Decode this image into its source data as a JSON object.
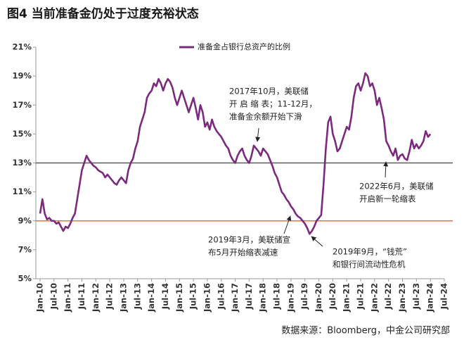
{
  "chart_data": {
    "type": "line",
    "title": "图4  当前准备金仍处于过度充裕状态",
    "source": "数据来源：Bloomberg，中金公司研究部",
    "x": [
      "2010-01",
      "2010-02",
      "2010-03",
      "2010-04",
      "2010-05",
      "2010-06",
      "2010-07",
      "2010-08",
      "2010-09",
      "2010-10",
      "2010-11",
      "2010-12",
      "2011-01",
      "2011-02",
      "2011-03",
      "2011-04",
      "2011-05",
      "2011-06",
      "2011-07",
      "2011-08",
      "2011-09",
      "2011-10",
      "2011-11",
      "2011-12",
      "2012-01",
      "2012-02",
      "2012-03",
      "2012-04",
      "2012-05",
      "2012-06",
      "2012-07",
      "2012-08",
      "2012-09",
      "2012-10",
      "2012-11",
      "2012-12",
      "2013-01",
      "2013-02",
      "2013-03",
      "2013-04",
      "2013-05",
      "2013-06",
      "2013-07",
      "2013-08",
      "2013-09",
      "2013-10",
      "2013-11",
      "2013-12",
      "2014-01",
      "2014-02",
      "2014-03",
      "2014-04",
      "2014-05",
      "2014-06",
      "2014-07",
      "2014-08",
      "2014-09",
      "2014-10",
      "2014-11",
      "2014-12",
      "2015-01",
      "2015-02",
      "2015-03",
      "2015-04",
      "2015-05",
      "2015-06",
      "2015-07",
      "2015-08",
      "2015-09",
      "2015-10",
      "2015-11",
      "2015-12",
      "2016-01",
      "2016-02",
      "2016-03",
      "2016-04",
      "2016-05",
      "2016-06",
      "2016-07",
      "2016-08",
      "2016-09",
      "2016-10",
      "2016-11",
      "2016-12",
      "2017-01",
      "2017-02",
      "2017-03",
      "2017-04",
      "2017-05",
      "2017-06",
      "2017-07",
      "2017-08",
      "2017-09",
      "2017-10",
      "2017-11",
      "2017-12",
      "2018-01",
      "2018-02",
      "2018-03",
      "2018-04",
      "2018-05",
      "2018-06",
      "2018-07",
      "2018-08",
      "2018-09",
      "2018-10",
      "2018-11",
      "2018-12",
      "2019-01",
      "2019-02",
      "2019-03",
      "2019-04",
      "2019-05",
      "2019-06",
      "2019-07",
      "2019-08",
      "2019-09",
      "2019-10",
      "2019-11",
      "2019-12",
      "2020-01",
      "2020-02",
      "2020-03",
      "2020-04",
      "2020-05",
      "2020-06",
      "2020-07",
      "2020-08",
      "2020-09",
      "2020-10",
      "2020-11",
      "2020-12",
      "2021-01",
      "2021-02",
      "2021-03",
      "2021-04",
      "2021-05",
      "2021-06",
      "2021-07",
      "2021-08",
      "2021-09",
      "2021-10",
      "2021-11",
      "2021-12",
      "2022-01",
      "2022-02",
      "2022-03",
      "2022-04",
      "2022-05",
      "2022-06",
      "2022-07",
      "2022-08",
      "2022-09",
      "2022-10",
      "2022-11",
      "2022-12",
      "2023-01",
      "2023-02",
      "2023-03",
      "2023-04",
      "2023-05",
      "2023-06",
      "2023-07",
      "2023-08",
      "2023-09",
      "2023-10",
      "2023-11",
      "2023-12",
      "2024-01"
    ],
    "series": [
      {
        "name": "准备金占银行总资产的比例",
        "color": "#7b2a7e",
        "values": [
          9.5,
          10.5,
          9.5,
          9.1,
          9.2,
          9.0,
          9.0,
          8.8,
          8.9,
          8.6,
          8.3,
          8.6,
          8.5,
          8.8,
          9.2,
          9.5,
          10.5,
          11.5,
          12.5,
          13.0,
          13.5,
          13.2,
          13.0,
          12.8,
          12.7,
          12.5,
          12.4,
          12.3,
          12.0,
          12.2,
          12.0,
          11.8,
          11.6,
          11.5,
          11.8,
          12.0,
          11.8,
          11.6,
          12.5,
          13.0,
          13.3,
          14.0,
          14.5,
          15.5,
          16.0,
          16.5,
          17.5,
          17.8,
          18.0,
          18.5,
          18.3,
          18.8,
          18.5,
          18.0,
          18.5,
          18.8,
          18.6,
          18.2,
          17.5,
          17.0,
          17.5,
          18.0,
          17.5,
          17.0,
          16.5,
          17.0,
          17.5,
          16.8,
          16.0,
          17.0,
          16.5,
          15.5,
          15.8,
          15.3,
          16.0,
          15.5,
          15.2,
          15.0,
          14.8,
          14.5,
          14.2,
          14.0,
          13.5,
          13.2,
          13.0,
          13.5,
          13.8,
          14.0,
          13.5,
          13.2,
          13.0,
          13.5,
          14.2,
          14.0,
          13.8,
          13.5,
          14.0,
          13.8,
          13.6,
          13.2,
          12.8,
          12.3,
          12.0,
          11.5,
          11.0,
          10.8,
          10.5,
          10.3,
          10.0,
          9.8,
          9.5,
          9.3,
          9.2,
          9.0,
          8.8,
          8.5,
          8.1,
          8.3,
          8.6,
          9.0,
          9.2,
          9.4,
          11.5,
          14.0,
          15.8,
          16.2,
          15.0,
          14.5,
          13.8,
          14.0,
          14.5,
          15.0,
          15.5,
          15.3,
          16.2,
          17.5,
          18.3,
          18.5,
          18.0,
          18.5,
          19.2,
          19.0,
          18.3,
          18.5,
          18.0,
          17.0,
          17.5,
          16.8,
          16.0,
          14.5,
          14.2,
          13.8,
          13.5,
          14.0,
          13.2,
          13.5,
          13.6,
          13.3,
          13.2,
          13.8,
          14.6,
          14.0,
          14.3,
          14.0,
          14.2,
          14.5,
          15.2,
          14.8,
          15.0
        ]
      }
    ],
    "ylim": [
      5,
      21
    ],
    "yticks": [
      {
        "value": 5,
        "label": "5%"
      },
      {
        "value": 7,
        "label": "7%"
      },
      {
        "value": 9,
        "label": "9%"
      },
      {
        "value": 11,
        "label": "11%"
      },
      {
        "value": 13,
        "label": "13%"
      },
      {
        "value": 15,
        "label": "15%"
      },
      {
        "value": 17,
        "label": "17%"
      },
      {
        "value": 19,
        "label": "19%"
      },
      {
        "value": 21,
        "label": "21%"
      }
    ],
    "xlim": [
      "2010-01",
      "2024-07"
    ],
    "xticks": [
      {
        "value": "2010-01",
        "label": "Jan-10"
      },
      {
        "value": "2010-07",
        "label": "Jul-10"
      },
      {
        "value": "2011-01",
        "label": "Jan-11"
      },
      {
        "value": "2011-07",
        "label": "Jul-11"
      },
      {
        "value": "2012-01",
        "label": "Jan-12"
      },
      {
        "value": "2012-07",
        "label": "Jul-12"
      },
      {
        "value": "2013-01",
        "label": "Jan-13"
      },
      {
        "value": "2013-07",
        "label": "Jul-13"
      },
      {
        "value": "2014-01",
        "label": "Jan-14"
      },
      {
        "value": "2014-07",
        "label": "Jul-14"
      },
      {
        "value": "2015-01",
        "label": "Jan-15"
      },
      {
        "value": "2015-07",
        "label": "Jul-15"
      },
      {
        "value": "2016-01",
        "label": "Jan-16"
      },
      {
        "value": "2016-07",
        "label": "Jul-16"
      },
      {
        "value": "2017-01",
        "label": "Jan-17"
      },
      {
        "value": "2017-07",
        "label": "Jul-17"
      },
      {
        "value": "2018-01",
        "label": "Jan-18"
      },
      {
        "value": "2018-07",
        "label": "Jul-18"
      },
      {
        "value": "2019-01",
        "label": "Jan-19"
      },
      {
        "value": "2019-07",
        "label": "Jul-19"
      },
      {
        "value": "2020-01",
        "label": "Jan-20"
      },
      {
        "value": "2020-07",
        "label": "Jul-20"
      },
      {
        "value": "2021-01",
        "label": "Jan-21"
      },
      {
        "value": "2021-07",
        "label": "Jul-21"
      },
      {
        "value": "2022-01",
        "label": "Jan-22"
      },
      {
        "value": "2022-07",
        "label": "Jul-22"
      },
      {
        "value": "2023-01",
        "label": "Jan-23"
      },
      {
        "value": "2023-07",
        "label": "Jul-23"
      },
      {
        "value": "2024-01",
        "label": "Jan-24"
      },
      {
        "value": "2024-07",
        "label": "Jul-24"
      }
    ],
    "reference_lines": [
      {
        "value": 13,
        "color": "#5a5a5a"
      },
      {
        "value": 9,
        "color": "#e8704a"
      }
    ],
    "annotations": [
      {
        "lines": [
          "2017年10月，美联储",
          "开 启 缩 表；11-12月，",
          "准备金余额开始下滑"
        ]
      },
      {
        "lines": [
          "2022年6月，美联储",
          "开启新一轮缩表"
        ]
      },
      {
        "lines": [
          "2019年3月，美联储宣",
          "布5月开始缩表减速"
        ]
      },
      {
        "lines": [
          "2019年9月，“钱荒”",
          "和银行间流动性危机"
        ]
      }
    ]
  }
}
